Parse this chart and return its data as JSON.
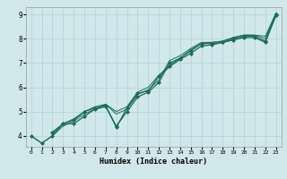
{
  "title": "",
  "xlabel": "Humidex (Indice chaleur)",
  "ylabel": "",
  "bg_color": "#d0e8ec",
  "grid_color": "#b8d4d8",
  "line_color": "#1a6b5a",
  "xlim": [
    -0.5,
    23.5
  ],
  "ylim": [
    3.55,
    9.3
  ],
  "xticks": [
    0,
    1,
    2,
    3,
    4,
    5,
    6,
    7,
    8,
    9,
    10,
    11,
    12,
    13,
    14,
    15,
    16,
    17,
    18,
    19,
    20,
    21,
    22,
    23
  ],
  "yticks": [
    4,
    5,
    6,
    7,
    8,
    9
  ],
  "series": [
    {
      "x": [
        0,
        1,
        2,
        3,
        4,
        5,
        6,
        7,
        8,
        9,
        10,
        11,
        12,
        13,
        14,
        15,
        16,
        17,
        18,
        19,
        20,
        21,
        22,
        23
      ],
      "y": [
        4.0,
        3.7,
        4.0,
        4.5,
        4.5,
        4.8,
        5.1,
        5.2,
        4.4,
        5.0,
        5.6,
        5.8,
        6.2,
        7.0,
        7.2,
        7.5,
        7.8,
        7.8,
        7.85,
        8.0,
        8.1,
        8.1,
        7.9,
        9.0
      ],
      "has_markers": true
    },
    {
      "x": [
        0,
        1,
        2,
        3,
        4,
        5,
        6,
        7,
        8,
        9,
        10,
        11,
        12,
        13,
        14,
        15,
        16,
        17,
        18,
        19,
        20,
        21,
        22,
        23
      ],
      "y": [
        4.0,
        3.7,
        4.0,
        4.4,
        4.6,
        4.9,
        5.1,
        5.3,
        4.9,
        5.1,
        5.7,
        5.9,
        6.3,
        7.1,
        7.3,
        7.6,
        7.85,
        7.85,
        7.9,
        8.05,
        8.15,
        8.15,
        8.0,
        9.05
      ],
      "has_markers": false
    },
    {
      "x": [
        2,
        3,
        4,
        5,
        6,
        7,
        8,
        9,
        10,
        11,
        12,
        13,
        14,
        15,
        16,
        17,
        18,
        19,
        20,
        21,
        22,
        23
      ],
      "y": [
        4.1,
        4.5,
        4.7,
        5.0,
        5.2,
        5.3,
        5.0,
        5.2,
        5.8,
        6.0,
        6.5,
        6.9,
        7.2,
        7.55,
        7.8,
        7.85,
        7.9,
        8.05,
        8.15,
        8.15,
        8.1,
        9.05
      ],
      "has_markers": false
    },
    {
      "x": [
        2,
        3,
        4,
        5,
        6,
        7,
        8,
        9,
        10,
        11,
        12,
        13,
        14,
        15,
        16,
        17,
        18,
        19,
        20,
        21,
        22,
        23
      ],
      "y": [
        4.15,
        4.5,
        4.65,
        5.0,
        5.15,
        5.25,
        4.35,
        5.15,
        5.75,
        5.85,
        6.45,
        6.85,
        7.15,
        7.4,
        7.7,
        7.75,
        7.85,
        7.95,
        8.05,
        8.05,
        7.85,
        8.95
      ],
      "has_markers": true
    }
  ]
}
